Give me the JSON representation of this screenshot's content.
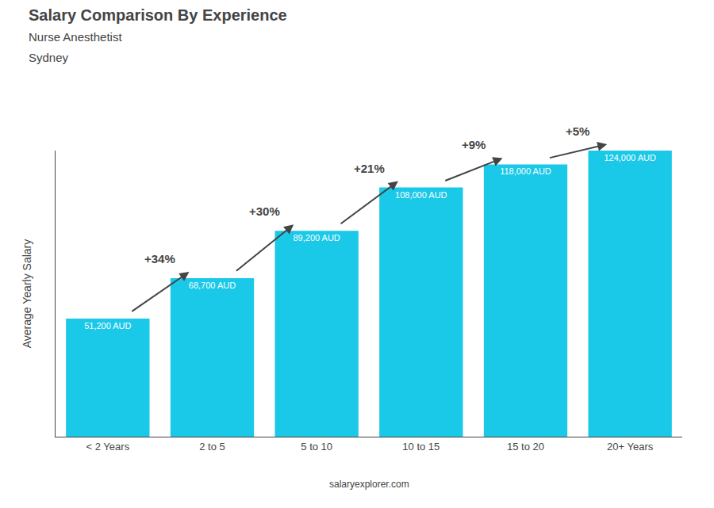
{
  "chart_data": {
    "type": "bar",
    "title": "Salary Comparison By Experience",
    "subtitle": [
      "Nurse Anesthetist",
      "Sydney"
    ],
    "categories": [
      "< 2 Years",
      "2 to 5",
      "5 to 10",
      "10 to 15",
      "15 to 20",
      "20+ Years"
    ],
    "values": [
      51200,
      68700,
      89200,
      108000,
      118000,
      124000
    ],
    "value_labels": [
      "51,200 AUD",
      "68,700 AUD",
      "89,200 AUD",
      "108,000 AUD",
      "118,000 AUD",
      "124,000 AUD"
    ],
    "data_labels": true,
    "annotations": [
      "+34%",
      "+30%",
      "+21%",
      "+9%",
      "+5%"
    ],
    "ylabel": "Average Yearly Salary",
    "watermark": "salaryexplorer.com",
    "color": "#1ac8e8",
    "ylim": [
      0,
      124000
    ],
    "tick_labels": "x",
    "grid": false
  }
}
